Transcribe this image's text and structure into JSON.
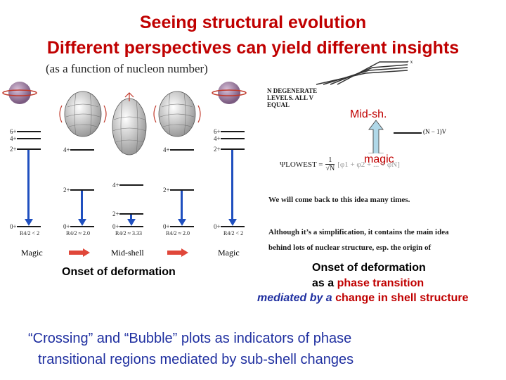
{
  "title_line1": "Seeing structural evolution",
  "title_line2": "Different perspectives can yield different insights",
  "left_panel": {
    "subtitle": "(as a function of nucleon number)",
    "columns": [
      {
        "levels": [
          "6+",
          "4+",
          "2+",
          "0+"
        ],
        "ratio": "R4/2 < 2",
        "tag": "Magic"
      },
      {
        "levels": [
          "4+",
          "2+",
          "0+"
        ],
        "ratio": "R4/2 ≈ 2.0"
      },
      {
        "levels": [
          "4+",
          "2+",
          "0+"
        ],
        "ratio": "R4/2 ≈ 3.33",
        "tag": "Mid-shell"
      },
      {
        "levels": [
          "4+",
          "2+",
          "0+"
        ],
        "ratio": "R4/2 ≈ 2.0"
      },
      {
        "levels": [
          "6+",
          "4+",
          "2+",
          "0+"
        ],
        "ratio": "R4/2 < 2",
        "tag": "Magic"
      }
    ],
    "caption": "Onset of deformation"
  },
  "right_panel": {
    "top_right_label": "+ x",
    "degenerate_text": [
      "N DEGENERATE",
      "LEVELS. ALL V",
      "EQUAL"
    ],
    "mid_sh": "Mid-sh.",
    "level_label": "(N − 1)V",
    "magic": "magic",
    "psi_left": "ΨLOWEST =",
    "psi_frac_num": "1",
    "psi_frac_den": "√N",
    "psi_right": "[φ1 + φ2 + ... + φN]",
    "comeback": "We will come back to this idea many times.",
    "simplification_1": "Although it’s a simplification, it contains the main idea",
    "simplification_2": "behind lots of nuclear structure, esp. the origin of",
    "caption_1": "Onset of deformation",
    "caption_2a": "as a ",
    "caption_2b": "phase transition",
    "caption_3a": "mediated by a ",
    "caption_3b": "change in shell structure"
  },
  "bottom": {
    "line1_a": "“Crossing” and “Bubble” plots as indicators of phase",
    "line2_a": "transitional regions ",
    "line2_b": "mediated",
    "line2_c": " by sub-shell changes"
  },
  "colors": {
    "title": "#c00000",
    "accent_blue": "#1f2fa0",
    "arrow_blue": "#1f4fbf",
    "magic_box": "#b0d8e8"
  }
}
